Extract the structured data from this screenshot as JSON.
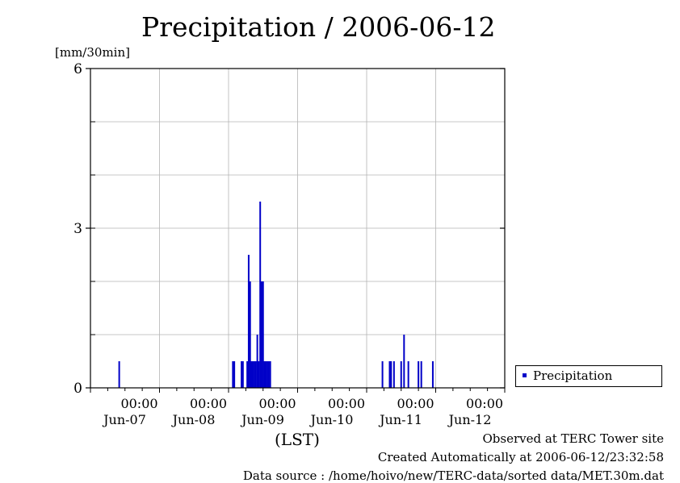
{
  "chart_data": {
    "type": "bar",
    "title": "Precipitation / 2006-06-12",
    "ylabel": "[mm/30min]",
    "xlabel": "(LST)",
    "ylim": [
      0,
      6
    ],
    "xlim_hours": [
      0,
      144
    ],
    "y_major_ticks": [
      0,
      3,
      6
    ],
    "y_minor_step": 1,
    "x_ticks": [
      {
        "hour": 24,
        "time": "00:00",
        "date": "Jun-07"
      },
      {
        "hour": 48,
        "time": "00:00",
        "date": "Jun-08"
      },
      {
        "hour": 72,
        "time": "00:00",
        "date": "Jun-09"
      },
      {
        "hour": 96,
        "time": "00:00",
        "date": "Jun-10"
      },
      {
        "hour": 120,
        "time": "00:00",
        "date": "Jun-11"
      },
      {
        "hour": 144,
        "time": "00:00",
        "date": "Jun-12"
      }
    ],
    "series": [
      {
        "name": "Precipitation",
        "color": "#0000c8",
        "x_hours": [
          10,
          49.5,
          50,
          52.5,
          53,
          54.5,
          55,
          55.5,
          56,
          56.5,
          57,
          57.5,
          58,
          58.5,
          59,
          59.5,
          60,
          60.5,
          61,
          61.5,
          62,
          62.5,
          101.5,
          104,
          104.5,
          105.5,
          108,
          109,
          110.5,
          114,
          115,
          119
        ],
        "values": [
          0.5,
          0.5,
          0.5,
          0.5,
          0.5,
          0.5,
          2.5,
          2.0,
          0.5,
          0.5,
          0.5,
          0.5,
          1.0,
          0.5,
          3.5,
          2.0,
          2.0,
          0.5,
          0.5,
          0.5,
          0.5,
          0.5,
          0.5,
          0.5,
          0.5,
          0.5,
          0.5,
          1.0,
          0.5,
          0.5,
          0.5,
          0.5
        ]
      }
    ],
    "legend": {
      "position": "outside-right",
      "label": "Precipitation"
    }
  },
  "footer": {
    "observed": "Observed at TERC Tower site",
    "created": "Created Automatically at 2006-06-12/23:32:58",
    "source": "Data source : /home/hoivo/new/TERC-data/sorted  data/MET.30m.dat"
  }
}
